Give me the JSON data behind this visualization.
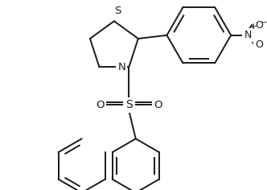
{
  "background_color": "#ffffff",
  "line_color": "#1a1a1a",
  "line_width": 1.4,
  "font_size": 9.5,
  "figsize": [
    3.32,
    2.36
  ],
  "dpi": 100,
  "xlim": [
    0.0,
    3.32
  ],
  "ylim": [
    0.0,
    2.36
  ]
}
